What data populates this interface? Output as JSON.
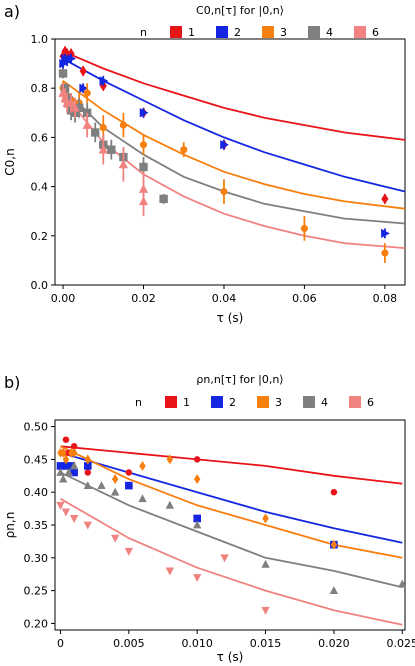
{
  "colors": {
    "n1": "#e8141a",
    "n2": "#1426e0",
    "n3": "#f77f0e",
    "n4": "#7f7f7f",
    "n6": "#f0827f"
  },
  "chart_data": [
    {
      "panel_label": "a)",
      "type": "scatter",
      "title": "C0,n[τ] for |0,n⟩",
      "legend_title": "n",
      "legend_position": "top",
      "xlabel": "τ (s)",
      "ylabel": "C0,n",
      "xlim": [
        -0.002,
        0.085
      ],
      "ylim": [
        0.0,
        1.0
      ],
      "xticks": [
        0.0,
        0.02,
        0.04,
        0.06,
        0.08
      ],
      "xtick_labels": [
        "0.00",
        "0.02",
        "0.04",
        "0.06",
        "0.08"
      ],
      "yticks": [
        0.0,
        0.2,
        0.4,
        0.6,
        0.8,
        1.0
      ],
      "ytick_labels": [
        "0.0",
        "0.2",
        "0.4",
        "0.6",
        "0.8",
        "1.0"
      ],
      "grid": false,
      "series": [
        {
          "name": "1",
          "color": "#e8141a",
          "marker": "diamond",
          "points": [
            [
              0.0,
              0.93,
              0.02
            ],
            [
              0.0005,
              0.95,
              0.02
            ],
            [
              0.001,
              0.94,
              0.02
            ],
            [
              0.002,
              0.94,
              0.02
            ],
            [
              0.005,
              0.87,
              0.02
            ],
            [
              0.01,
              0.81,
              0.02
            ],
            [
              0.02,
              0.7,
              0.02
            ],
            [
              0.04,
              0.57,
              0.02
            ],
            [
              0.08,
              0.35,
              0.02
            ]
          ],
          "fit": [
            [
              0.0,
              0.95
            ],
            [
              0.01,
              0.88
            ],
            [
              0.02,
              0.82
            ],
            [
              0.03,
              0.77
            ],
            [
              0.04,
              0.72
            ],
            [
              0.05,
              0.68
            ],
            [
              0.06,
              0.65
            ],
            [
              0.07,
              0.62
            ],
            [
              0.085,
              0.59
            ]
          ]
        },
        {
          "name": "2",
          "color": "#1426e0",
          "marker": "triangle-right",
          "points": [
            [
              0.0,
              0.9,
              0.02
            ],
            [
              0.0005,
              0.92,
              0.02
            ],
            [
              0.001,
              0.91,
              0.02
            ],
            [
              0.002,
              0.92,
              0.02
            ],
            [
              0.005,
              0.8,
              0.02
            ],
            [
              0.01,
              0.83,
              0.02
            ],
            [
              0.02,
              0.7,
              0.02
            ],
            [
              0.04,
              0.57,
              0.02
            ],
            [
              0.08,
              0.21,
              0.02
            ]
          ],
          "fit": [
            [
              0.0,
              0.92
            ],
            [
              0.01,
              0.83
            ],
            [
              0.02,
              0.75
            ],
            [
              0.03,
              0.67
            ],
            [
              0.04,
              0.6
            ],
            [
              0.05,
              0.54
            ],
            [
              0.06,
              0.49
            ],
            [
              0.07,
              0.44
            ],
            [
              0.085,
              0.38
            ]
          ]
        },
        {
          "name": "3",
          "color": "#f77f0e",
          "marker": "circle",
          "points": [
            [
              0.0,
              0.8,
              0.03
            ],
            [
              0.0005,
              0.78,
              0.03
            ],
            [
              0.001,
              0.76,
              0.03
            ],
            [
              0.002,
              0.75,
              0.03
            ],
            [
              0.004,
              0.74,
              0.04
            ],
            [
              0.006,
              0.78,
              0.04
            ],
            [
              0.01,
              0.64,
              0.05
            ],
            [
              0.015,
              0.65,
              0.05
            ],
            [
              0.02,
              0.57,
              0.04
            ],
            [
              0.03,
              0.55,
              0.03
            ],
            [
              0.04,
              0.38,
              0.05
            ],
            [
              0.06,
              0.23,
              0.05
            ],
            [
              0.08,
              0.13,
              0.04
            ]
          ],
          "fit": [
            [
              0.0,
              0.83
            ],
            [
              0.01,
              0.71
            ],
            [
              0.02,
              0.61
            ],
            [
              0.03,
              0.53
            ],
            [
              0.04,
              0.46
            ],
            [
              0.05,
              0.41
            ],
            [
              0.06,
              0.37
            ],
            [
              0.07,
              0.34
            ],
            [
              0.085,
              0.31
            ]
          ]
        },
        {
          "name": "4",
          "color": "#7f7f7f",
          "marker": "square",
          "points": [
            [
              0.0,
              0.86,
              0.02
            ],
            [
              0.0005,
              0.8,
              0.02
            ],
            [
              0.001,
              0.76,
              0.03
            ],
            [
              0.002,
              0.71,
              0.04
            ],
            [
              0.003,
              0.7,
              0.04
            ],
            [
              0.004,
              0.72,
              0.04
            ],
            [
              0.006,
              0.7,
              0.04
            ],
            [
              0.008,
              0.62,
              0.04
            ],
            [
              0.01,
              0.57,
              0.04
            ],
            [
              0.012,
              0.55,
              0.04
            ],
            [
              0.015,
              0.52,
              0.04
            ],
            [
              0.02,
              0.48,
              0.04
            ],
            [
              0.025,
              0.35,
              0.02
            ]
          ],
          "fit": [
            [
              0.0,
              0.8
            ],
            [
              0.01,
              0.64
            ],
            [
              0.02,
              0.53
            ],
            [
              0.03,
              0.44
            ],
            [
              0.04,
              0.38
            ],
            [
              0.05,
              0.33
            ],
            [
              0.06,
              0.3
            ],
            [
              0.07,
              0.27
            ],
            [
              0.085,
              0.25
            ]
          ]
        },
        {
          "name": "6",
          "color": "#f0827f",
          "marker": "triangle-up",
          "points": [
            [
              0.0,
              0.78,
              0.04
            ],
            [
              0.0005,
              0.76,
              0.04
            ],
            [
              0.001,
              0.74,
              0.04
            ],
            [
              0.002,
              0.74,
              0.04
            ],
            [
              0.003,
              0.72,
              0.04
            ],
            [
              0.006,
              0.65,
              0.05
            ],
            [
              0.01,
              0.55,
              0.06
            ],
            [
              0.015,
              0.49,
              0.07
            ],
            [
              0.02,
              0.39,
              0.07
            ],
            [
              0.02,
              0.34,
              0.06
            ]
          ],
          "fit": [
            [
              0.0,
              0.78
            ],
            [
              0.01,
              0.58
            ],
            [
              0.02,
              0.45
            ],
            [
              0.03,
              0.36
            ],
            [
              0.04,
              0.29
            ],
            [
              0.05,
              0.24
            ],
            [
              0.06,
              0.2
            ],
            [
              0.07,
              0.17
            ],
            [
              0.085,
              0.15
            ]
          ]
        }
      ]
    },
    {
      "panel_label": "b)",
      "type": "scatter",
      "title": "ρn,n[τ] for |0,n⟩",
      "legend_title": "n",
      "legend_position": "top",
      "xlabel": "τ (s)",
      "ylabel": "ρn,n",
      "xlim": [
        -0.0004,
        0.0252
      ],
      "ylim": [
        0.19,
        0.51
      ],
      "xticks": [
        0.0,
        0.005,
        0.01,
        0.015,
        0.02,
        0.025
      ],
      "xtick_labels": [
        "0",
        "0.005",
        "0.010",
        "0.015",
        "0.020",
        "0.025"
      ],
      "yticks": [
        0.2,
        0.25,
        0.3,
        0.35,
        0.4,
        0.45,
        0.5
      ],
      "ytick_labels": [
        "0.20",
        "0.25",
        "0.30",
        "0.35",
        "0.40",
        "0.45",
        "0.50"
      ],
      "grid": false,
      "series": [
        {
          "name": "1",
          "color": "#e8141a",
          "marker": "circle",
          "points": [
            [
              0.0,
              0.44
            ],
            [
              0.0002,
              0.46
            ],
            [
              0.0004,
              0.48
            ],
            [
              0.0006,
              0.46
            ],
            [
              0.001,
              0.47
            ],
            [
              0.002,
              0.43
            ],
            [
              0.005,
              0.43
            ],
            [
              0.01,
              0.45
            ],
            [
              0.02,
              0.4
            ]
          ],
          "fit": [
            [
              0.0,
              0.47
            ],
            [
              0.005,
              0.46
            ],
            [
              0.01,
              0.45
            ],
            [
              0.015,
              0.44
            ],
            [
              0.02,
              0.425
            ],
            [
              0.025,
              0.413
            ]
          ]
        },
        {
          "name": "2",
          "color": "#1426e0",
          "marker": "square",
          "points": [
            [
              0.0,
              0.44
            ],
            [
              0.0004,
              0.44
            ],
            [
              0.0008,
              0.44
            ],
            [
              0.001,
              0.43
            ],
            [
              0.002,
              0.44
            ],
            [
              0.005,
              0.41
            ],
            [
              0.01,
              0.36
            ],
            [
              0.02,
              0.32
            ]
          ],
          "fit": [
            [
              0.0,
              0.46
            ],
            [
              0.005,
              0.43
            ],
            [
              0.01,
              0.4
            ],
            [
              0.015,
              0.37
            ],
            [
              0.02,
              0.345
            ],
            [
              0.025,
              0.323
            ]
          ]
        },
        {
          "name": "3",
          "color": "#f77f0e",
          "marker": "diamond",
          "points": [
            [
              0.0,
              0.46
            ],
            [
              0.0002,
              0.46
            ],
            [
              0.0004,
              0.45
            ],
            [
              0.0008,
              0.46
            ],
            [
              0.001,
              0.46
            ],
            [
              0.002,
              0.45
            ],
            [
              0.004,
              0.42
            ],
            [
              0.006,
              0.44
            ],
            [
              0.008,
              0.45
            ],
            [
              0.01,
              0.42
            ],
            [
              0.015,
              0.36
            ],
            [
              0.02,
              0.32
            ]
          ],
          "fit": [
            [
              0.0,
              0.47
            ],
            [
              0.005,
              0.42
            ],
            [
              0.01,
              0.38
            ],
            [
              0.015,
              0.35
            ],
            [
              0.02,
              0.32
            ],
            [
              0.025,
              0.3
            ]
          ]
        },
        {
          "name": "4",
          "color": "#7f7f7f",
          "marker": "triangle-up",
          "points": [
            [
              0.0,
              0.43
            ],
            [
              0.0002,
              0.42
            ],
            [
              0.0006,
              0.43
            ],
            [
              0.001,
              0.44
            ],
            [
              0.002,
              0.41
            ],
            [
              0.003,
              0.41
            ],
            [
              0.004,
              0.4
            ],
            [
              0.006,
              0.39
            ],
            [
              0.008,
              0.38
            ],
            [
              0.01,
              0.35
            ],
            [
              0.015,
              0.29
            ],
            [
              0.02,
              0.25
            ],
            [
              0.025,
              0.26
            ]
          ],
          "fit": [
            [
              0.0,
              0.43
            ],
            [
              0.005,
              0.38
            ],
            [
              0.01,
              0.34
            ],
            [
              0.015,
              0.3
            ],
            [
              0.02,
              0.28
            ],
            [
              0.025,
              0.255
            ]
          ]
        },
        {
          "name": "6",
          "color": "#f0827f",
          "marker": "triangle-down",
          "points": [
            [
              0.0,
              0.38
            ],
            [
              0.0004,
              0.37
            ],
            [
              0.001,
              0.36
            ],
            [
              0.002,
              0.35
            ],
            [
              0.004,
              0.33
            ],
            [
              0.005,
              0.31
            ],
            [
              0.008,
              0.28
            ],
            [
              0.01,
              0.27
            ],
            [
              0.012,
              0.3
            ],
            [
              0.015,
              0.22
            ]
          ],
          "fit": [
            [
              0.0,
              0.39
            ],
            [
              0.005,
              0.33
            ],
            [
              0.01,
              0.285
            ],
            [
              0.015,
              0.25
            ],
            [
              0.02,
              0.22
            ],
            [
              0.025,
              0.198
            ]
          ]
        }
      ]
    }
  ]
}
